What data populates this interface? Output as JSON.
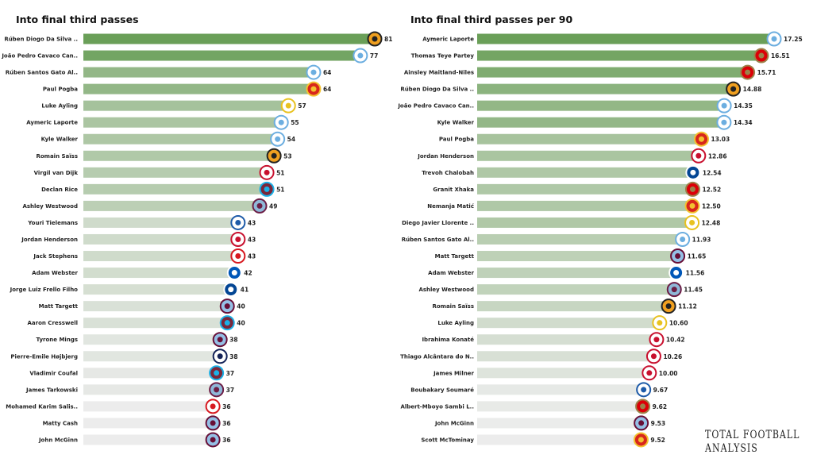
{
  "brand": "TOTAL FOOTBALL ANALYSIS",
  "team_colors": {
    "wolves": [
      "#f0a020",
      "#222222"
    ],
    "mancity": [
      "#ffffff",
      "#6caee0"
    ],
    "manutd": [
      "#d8261c",
      "#f2c230"
    ],
    "leeds": [
      "#ffffff",
      "#e8c220"
    ],
    "liverpool": [
      "#ffffff",
      "#c8102e"
    ],
    "westham": [
      "#7a263a",
      "#1bb1e7"
    ],
    "burnley": [
      "#8fb8d8",
      "#6c1d45"
    ],
    "leicester": [
      "#ffffff",
      "#1d5aa8"
    ],
    "southampton": [
      "#ffffff",
      "#d71920"
    ],
    "brighton": [
      "#0057b8",
      "#ffffff"
    ],
    "chelsea": [
      "#034694",
      "#ffffff"
    ],
    "villa": [
      "#95bfe5",
      "#670e36"
    ],
    "spurs": [
      "#ffffff",
      "#132257"
    ],
    "arsenal": [
      "#db0007",
      "#9c824a"
    ]
  },
  "bar_colors": {
    "low": "#ececec",
    "high": "#6a9f58"
  },
  "chart_data": [
    {
      "type": "bar",
      "orientation": "horizontal",
      "title": "Into final third passes",
      "xlim": [
        0,
        81
      ],
      "rows": [
        {
          "player": "Rúben Diogo Da Silva ..",
          "team": "wolves",
          "value": 81,
          "label": "81"
        },
        {
          "player": "João Pedro Cavaco Can..",
          "team": "mancity",
          "value": 77,
          "label": "77"
        },
        {
          "player": "Rúben  Santos Gato Al..",
          "team": "mancity",
          "value": 64,
          "label": "64"
        },
        {
          "player": "Paul Pogba",
          "team": "manutd",
          "value": 64,
          "label": "64"
        },
        {
          "player": "Luke Ayling",
          "team": "leeds",
          "value": 57,
          "label": "57"
        },
        {
          "player": "Aymeric  Laporte",
          "team": "mancity",
          "value": 55,
          "label": "55"
        },
        {
          "player": "Kyle Walker",
          "team": "mancity",
          "value": 54,
          "label": "54"
        },
        {
          "player": "Romain Saïss",
          "team": "wolves",
          "value": 53,
          "label": "53"
        },
        {
          "player": "Virgil van Dijk",
          "team": "liverpool",
          "value": 51,
          "label": "51"
        },
        {
          "player": "Declan Rice",
          "team": "westham",
          "value": 51,
          "label": "51"
        },
        {
          "player": "Ashley Westwood",
          "team": "burnley",
          "value": 49,
          "label": "49"
        },
        {
          "player": "Youri Tielemans",
          "team": "leicester",
          "value": 43,
          "label": "43"
        },
        {
          "player": "Jordan Henderson",
          "team": "liverpool",
          "value": 43,
          "label": "43"
        },
        {
          "player": "Jack Stephens",
          "team": "southampton",
          "value": 43,
          "label": "43"
        },
        {
          "player": "Adam Webster",
          "team": "brighton",
          "value": 42,
          "label": "42"
        },
        {
          "player": "Jorge Luiz Frello Filho",
          "team": "chelsea",
          "value": 41,
          "label": "41"
        },
        {
          "player": "Matt Targett",
          "team": "villa",
          "value": 40,
          "label": "40"
        },
        {
          "player": "Aaron Cresswell",
          "team": "westham",
          "value": 40,
          "label": "40"
        },
        {
          "player": "Tyrone Mings",
          "team": "villa",
          "value": 38,
          "label": "38"
        },
        {
          "player": "Pierre-Emile Højbjerg",
          "team": "spurs",
          "value": 38,
          "label": "38"
        },
        {
          "player": "Vladimir Coufal",
          "team": "westham",
          "value": 37,
          "label": "37"
        },
        {
          "player": "James  Tarkowski",
          "team": "burnley",
          "value": 37,
          "label": "37"
        },
        {
          "player": "Mohamed Karim Salis..",
          "team": "southampton",
          "value": 36,
          "label": "36"
        },
        {
          "player": "Matty Cash",
          "team": "villa",
          "value": 36,
          "label": "36"
        },
        {
          "player": "John McGinn",
          "team": "villa",
          "value": 36,
          "label": "36"
        }
      ]
    },
    {
      "type": "bar",
      "orientation": "horizontal",
      "title": "Into final third passes per 90",
      "xlim": [
        0,
        17.25
      ],
      "rows": [
        {
          "player": "Aymeric  Laporte",
          "team": "mancity",
          "value": 17.25,
          "label": "17.25"
        },
        {
          "player": "Thomas Teye Partey",
          "team": "arsenal",
          "value": 16.51,
          "label": "16.51"
        },
        {
          "player": "Ainsley Maitland-Niles",
          "team": "arsenal",
          "value": 15.71,
          "label": "15.71"
        },
        {
          "player": "Rúben Diogo Da Silva ..",
          "team": "wolves",
          "value": 14.88,
          "label": "14.88"
        },
        {
          "player": "João Pedro Cavaco Can..",
          "team": "mancity",
          "value": 14.35,
          "label": "14.35"
        },
        {
          "player": "Kyle Walker",
          "team": "mancity",
          "value": 14.34,
          "label": "14.34"
        },
        {
          "player": "Paul Pogba",
          "team": "manutd",
          "value": 13.03,
          "label": "13.03"
        },
        {
          "player": "Jordan Henderson",
          "team": "liverpool",
          "value": 12.86,
          "label": "12.86"
        },
        {
          "player": "Trevoh Chalobah",
          "team": "chelsea",
          "value": 12.54,
          "label": "12.54"
        },
        {
          "player": "Granit Xhaka",
          "team": "arsenal",
          "value": 12.52,
          "label": "12.52"
        },
        {
          "player": "Nemanja Matić",
          "team": "manutd",
          "value": 12.5,
          "label": "12.50"
        },
        {
          "player": "Diego Javier Llorente ..",
          "team": "leeds",
          "value": 12.48,
          "label": "12.48"
        },
        {
          "player": "Rúben  Santos Gato Al..",
          "team": "mancity",
          "value": 11.93,
          "label": "11.93"
        },
        {
          "player": "Matt Targett",
          "team": "villa",
          "value": 11.65,
          "label": "11.65"
        },
        {
          "player": "Adam Webster",
          "team": "brighton",
          "value": 11.56,
          "label": "11.56"
        },
        {
          "player": "Ashley Westwood",
          "team": "burnley",
          "value": 11.45,
          "label": "11.45"
        },
        {
          "player": "Romain Saïss",
          "team": "wolves",
          "value": 11.12,
          "label": "11.12"
        },
        {
          "player": "Luke Ayling",
          "team": "leeds",
          "value": 10.6,
          "label": "10.60"
        },
        {
          "player": "Ibrahima Konaté",
          "team": "liverpool",
          "value": 10.42,
          "label": "10.42"
        },
        {
          "player": "Thiago Alcântara do N..",
          "team": "liverpool",
          "value": 10.26,
          "label": "10.26"
        },
        {
          "player": "James Milner",
          "team": "liverpool",
          "value": 10.0,
          "label": "10.00"
        },
        {
          "player": "Boubakary Soumaré",
          "team": "leicester",
          "value": 9.67,
          "label": "9.67"
        },
        {
          "player": "Albert-Mboyo Sambi L..",
          "team": "arsenal",
          "value": 9.62,
          "label": "9.62"
        },
        {
          "player": "John McGinn",
          "team": "villa",
          "value": 9.53,
          "label": "9.53"
        },
        {
          "player": "Scott McTominay",
          "team": "manutd",
          "value": 9.52,
          "label": "9.52"
        }
      ]
    }
  ]
}
